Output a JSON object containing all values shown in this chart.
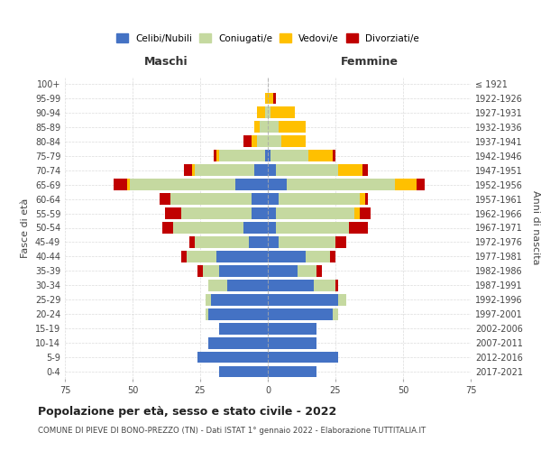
{
  "age_groups": [
    "0-4",
    "5-9",
    "10-14",
    "15-19",
    "20-24",
    "25-29",
    "30-34",
    "35-39",
    "40-44",
    "45-49",
    "50-54",
    "55-59",
    "60-64",
    "65-69",
    "70-74",
    "75-79",
    "80-84",
    "85-89",
    "90-94",
    "95-99",
    "100+"
  ],
  "birth_years": [
    "2017-2021",
    "2012-2016",
    "2007-2011",
    "2002-2006",
    "1997-2001",
    "1992-1996",
    "1987-1991",
    "1982-1986",
    "1977-1981",
    "1972-1976",
    "1967-1971",
    "1962-1966",
    "1957-1961",
    "1952-1956",
    "1947-1951",
    "1942-1946",
    "1937-1941",
    "1932-1936",
    "1927-1931",
    "1922-1926",
    "≤ 1921"
  ],
  "maschi": {
    "celibi": [
      18,
      26,
      22,
      18,
      22,
      21,
      15,
      18,
      19,
      7,
      9,
      6,
      6,
      12,
      5,
      1,
      0,
      0,
      0,
      0,
      0
    ],
    "coniugati": [
      0,
      0,
      0,
      0,
      1,
      2,
      7,
      6,
      11,
      20,
      26,
      26,
      30,
      39,
      22,
      17,
      4,
      3,
      1,
      0,
      0
    ],
    "vedovi": [
      0,
      0,
      0,
      0,
      0,
      0,
      0,
      0,
      0,
      0,
      0,
      0,
      0,
      1,
      1,
      1,
      2,
      2,
      3,
      1,
      0
    ],
    "divorziati": [
      0,
      0,
      0,
      0,
      0,
      0,
      0,
      2,
      2,
      2,
      4,
      6,
      4,
      5,
      3,
      1,
      3,
      0,
      0,
      0,
      0
    ]
  },
  "femmine": {
    "nubili": [
      18,
      26,
      18,
      18,
      24,
      26,
      17,
      11,
      14,
      4,
      3,
      3,
      4,
      7,
      3,
      1,
      0,
      0,
      0,
      0,
      0
    ],
    "coniugate": [
      0,
      0,
      0,
      0,
      2,
      3,
      8,
      7,
      9,
      21,
      27,
      29,
      30,
      40,
      23,
      14,
      5,
      4,
      1,
      0,
      0
    ],
    "vedove": [
      0,
      0,
      0,
      0,
      0,
      0,
      0,
      0,
      0,
      0,
      0,
      2,
      2,
      8,
      9,
      9,
      9,
      10,
      9,
      2,
      0
    ],
    "divorziate": [
      0,
      0,
      0,
      0,
      0,
      0,
      1,
      2,
      2,
      4,
      7,
      4,
      1,
      3,
      2,
      1,
      0,
      0,
      0,
      1,
      0
    ]
  },
  "colors": {
    "celibi": "#4472c4",
    "coniugati": "#c5d9a0",
    "vedovi": "#ffc000",
    "divorziati": "#c00000"
  },
  "title": "Popolazione per età, sesso e stato civile - 2022",
  "subtitle": "COMUNE DI PIEVE DI BONO-PREZZO (TN) - Dati ISTAT 1° gennaio 2022 - Elaborazione TUTTITALIA.IT",
  "xlabel_maschi": "Maschi",
  "xlabel_femmine": "Femmine",
  "ylabel_left": "Fasce di età",
  "ylabel_right": "Anni di nascita",
  "xlim": 75,
  "legend_labels": [
    "Celibi/Nubili",
    "Coniugati/e",
    "Vedovi/e",
    "Divorziati/e"
  ],
  "background_color": "#ffffff",
  "grid_color": "#cccccc"
}
